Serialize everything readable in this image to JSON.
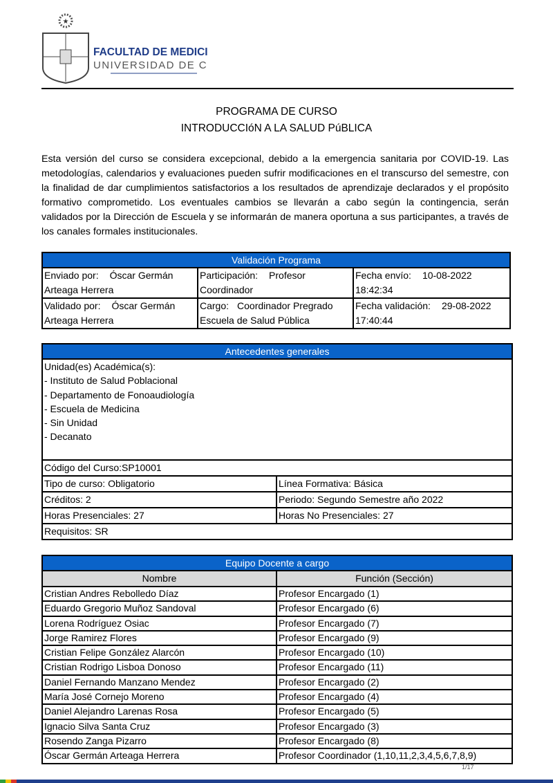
{
  "header": {
    "logo_line1": "FACULTAD DE MEDICINA",
    "logo_line2": "UNIVERSIDAD DE CHILE"
  },
  "title": {
    "line1": "PROGRAMA DE CURSO",
    "line2": "INTRODUCCIóN A LA SALUD PúBLICA"
  },
  "intro": "Esta versión del curso se considera excepcional, debido a la emergencia sanitaria por COVID-19. Las metodologías, calendarios y evaluaciones pueden sufrir modificaciones en el transcurso del semestre, con la finalidad de dar cumplimientos satisfactorios a los resultados de aprendizaje declarados y el propósito formativo comprometido. Los eventuales cambios se llevarán a cabo según la contingencia, serán validados por la Dirección de Escuela y se informarán de manera oportuna a sus participantes, a través de los canales formales institucionales.",
  "validacion": {
    "title": "Validación Programa",
    "enviado_label": "Enviado por:",
    "enviado_a": "Óscar Germán",
    "enviado_b": "Arteaga Herrera",
    "participacion_label": "Participación:",
    "participacion_a": "Profesor",
    "participacion_b": "Coordinador",
    "fecha_envio_label": "Fecha envío:",
    "fecha_envio_a": "10-08-2022",
    "fecha_envio_b": "18:42:34",
    "validado_label": "Validado por:",
    "validado_a": "Óscar Germán",
    "validado_b": "Arteaga Herrera",
    "cargo_label": "Cargo:",
    "cargo_a": "Coordinador Pregrado",
    "cargo_b": "Escuela de Salud Pública",
    "fecha_val_label": "Fecha validación:",
    "fecha_val_a": "29-08-2022",
    "fecha_val_b": "17:40:44"
  },
  "antecedentes": {
    "title": "Antecedentes generales",
    "unidades_label": "Unidad(es) Académica(s):",
    "unidades": [
      "- Instituto de Salud Poblacional",
      "- Departamento de Fonoaudiología",
      "- Escuela de Medicina",
      "- Sin Unidad",
      "- Decanato"
    ],
    "codigo": "Código del Curso:SP10001",
    "tipo": "Tipo de curso: Obligatorio",
    "linea": "Línea Formativa: Básica",
    "creditos": "Créditos: 2",
    "periodo": "Periodo: Segundo Semestre año 2022",
    "horas_p": "Horas Presenciales: 27",
    "horas_np": "Horas No Presenciales: 27",
    "requisitos": "Requisitos: SR"
  },
  "equipo": {
    "title": "Equipo Docente a cargo",
    "col_nombre": "Nombre",
    "col_funcion": "Función (Sección)",
    "rows": [
      [
        "Cristian Andres Rebolledo Díaz",
        "Profesor Encargado (1)"
      ],
      [
        "Eduardo Gregorio Muñoz Sandoval",
        "Profesor Encargado (6)"
      ],
      [
        "Lorena Rodríguez Osiac",
        "Profesor Encargado (7)"
      ],
      [
        "Jorge Ramirez Flores",
        "Profesor Encargado (9)"
      ],
      [
        "Cristian Felipe González Alarcón",
        "Profesor Encargado (10)"
      ],
      [
        "Cristian Rodrigo Lisboa Donoso",
        "Profesor Encargado (11)"
      ],
      [
        "Daniel Fernando Manzano Mendez",
        "Profesor Encargado (2)"
      ],
      [
        "María José Cornejo Moreno",
        "Profesor Encargado (4)"
      ],
      [
        "Daniel Alejandro Larenas Rosa",
        "Profesor Encargado (5)"
      ],
      [
        "Ignacio Silva Santa Cruz",
        "Profesor Encargado (3)"
      ],
      [
        "Rosendo Zanga Pizarro",
        "Profesor Encargado (8)"
      ],
      [
        "Óscar Germán Arteaga Herrera",
        "Profesor Coordinador (1,10,11,2,3,4,5,6,7,8,9)"
      ]
    ]
  },
  "page_number": "1/17",
  "colors": {
    "header_blue": "#0a63c9",
    "column_header_gray": "#d9d9d9",
    "logo_navy": "#1f3c88"
  }
}
